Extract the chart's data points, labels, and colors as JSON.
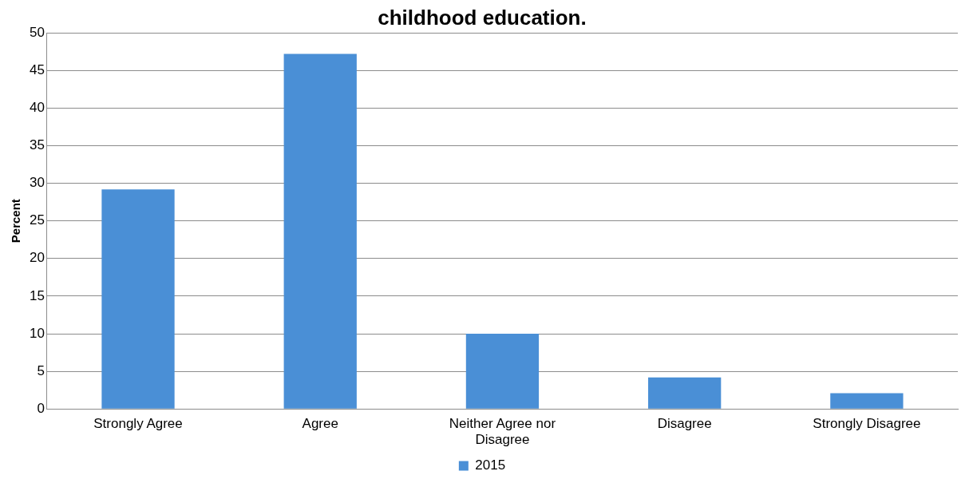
{
  "chart_data": {
    "type": "bar",
    "title": "childhood education.",
    "ylabel": "Percent",
    "categories": [
      "Strongly Agree",
      "Agree",
      "Neither Agree nor Disagree",
      "Disagree",
      "Strongly Disagree"
    ],
    "series": [
      {
        "name": "2015",
        "color": "#4a8fd6",
        "values": [
          29.2,
          47.2,
          10.0,
          4.2,
          2.1
        ]
      }
    ],
    "ylim": [
      0,
      50
    ],
    "yticks": [
      0,
      5,
      10,
      15,
      20,
      25,
      30,
      35,
      40,
      45,
      50
    ],
    "grid": "y",
    "legend": "bottom"
  }
}
